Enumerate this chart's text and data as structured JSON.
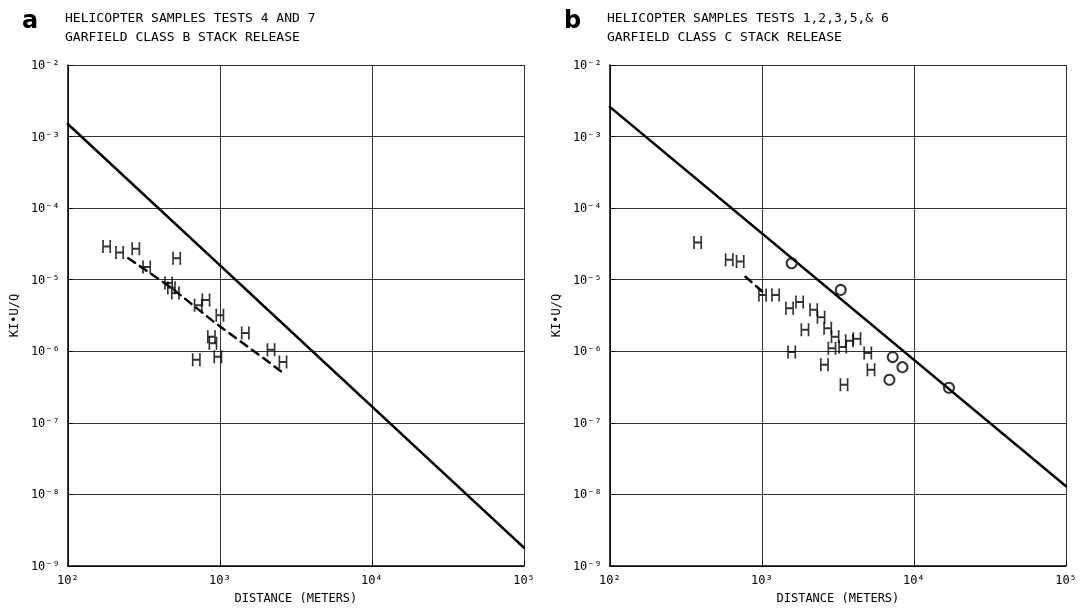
{
  "chart_data": [
    {
      "type": "scatter",
      "title": "HELICOPTER SAMPLES TESTS 4 AND 7",
      "subtitle": "GARFIELD CLASS B STACK RELEASE",
      "annotations": [
        "a"
      ],
      "xlabel": "DISTANCE (METERS)",
      "ylabel": "KI•U/Q",
      "log": "xy",
      "grid": true,
      "xlim": [
        100,
        100000
      ],
      "xticks": [
        {
          "value": 100,
          "label": "10²"
        },
        {
          "value": 1000,
          "label": "10³"
        },
        {
          "value": 10000,
          "label": "10⁴"
        },
        {
          "value": 100000,
          "label": "10⁵"
        }
      ],
      "ylim": [
        1e-09,
        0.01
      ],
      "yticks": [
        {
          "value": 1e-09,
          "label": "10⁻⁹"
        },
        {
          "value": 1e-08,
          "label": "10⁻⁸"
        },
        {
          "value": 1e-07,
          "label": "10⁻⁷"
        },
        {
          "value": 1e-06,
          "label": "10⁻⁶"
        },
        {
          "value": 1e-05,
          "label": "10⁻⁵"
        },
        {
          "value": 0.0001,
          "label": "10⁻⁴"
        },
        {
          "value": 0.001,
          "label": "10⁻³"
        },
        {
          "value": 0.01,
          "label": "10⁻²"
        }
      ],
      "series": [
        {
          "type": "line",
          "marker": "none",
          "line_style": "solid",
          "color": "#000000",
          "x": [
            100,
            100000
          ],
          "values": [
            0.0015,
            1.8e-09
          ]
        },
        {
          "type": "line",
          "marker": "none",
          "line_style": "dashed",
          "color": "#000000",
          "x": [
            250,
            480,
            930,
            2000,
            2600
          ],
          "values": [
            2e-05,
            7.7e-06,
            2.5e-06,
            7.6e-07,
            5e-07
          ]
        },
        {
          "marker": "cross",
          "color": "#000000",
          "x": [
            180,
            219,
            280,
            330,
            520,
            460,
            480,
            510,
            720,
            810,
            1000,
            880,
            900,
            700,
            970,
            1470,
            2170,
            2600
          ],
          "values": [
            2.9e-05,
            2.4e-05,
            2.7e-05,
            1.5e-05,
            2e-05,
            9e-06,
            7.7e-06,
            6.5e-06,
            4.4e-06,
            5.2e-06,
            3.2e-06,
            1.6e-06,
            1.3e-06,
            7.6e-07,
            8.4e-07,
            1.8e-06,
            1.05e-06,
            7.1e-07
          ]
        }
      ]
    },
    {
      "type": "scatter",
      "title": "HELICOPTER SAMPLES TESTS 1,2,3,5,& 6",
      "subtitle": "GARFIELD CLASS C STACK RELEASE",
      "annotations": [
        "b"
      ],
      "xlabel": "DISTANCE (METERS)",
      "ylabel": "KI•U/Q",
      "log": "xy",
      "grid": true,
      "xlim": [
        100,
        100000
      ],
      "xticks": [
        {
          "value": 100,
          "label": "10²"
        },
        {
          "value": 1000,
          "label": "10³"
        },
        {
          "value": 10000,
          "label": "10⁴"
        },
        {
          "value": 100000,
          "label": "10⁵"
        }
      ],
      "ylim": [
        1e-09,
        0.01
      ],
      "yticks": [
        {
          "value": 1e-09,
          "label": "10⁻⁹"
        },
        {
          "value": 1e-08,
          "label": "10⁻⁸"
        },
        {
          "value": 1e-07,
          "label": "10⁻⁷"
        },
        {
          "value": 1e-06,
          "label": "10⁻⁶"
        },
        {
          "value": 1e-05,
          "label": "10⁻⁵"
        },
        {
          "value": 0.0001,
          "label": "10⁻⁴"
        },
        {
          "value": 0.001,
          "label": "10⁻³"
        },
        {
          "value": 0.01,
          "label": "10⁻²"
        }
      ],
      "series": [
        {
          "type": "line",
          "marker": "none",
          "line_style": "solid",
          "color": "#000000",
          "x": [
            100,
            100000
          ],
          "values": [
            0.0026,
            1.3e-08
          ]
        },
        {
          "type": "line",
          "marker": "none",
          "line_style": "dashed",
          "color": "#000000",
          "x": [
            780,
            1010
          ],
          "values": [
            1.1e-05,
            6.8e-06
          ]
        },
        {
          "marker": "cross",
          "color": "#000000",
          "x": [
            378,
            610,
            720,
            1010,
            1230,
            1520,
            1770,
            2190,
            2450,
            1920,
            2710,
            3030,
            3760,
            4220,
            2890,
            3400,
            1570,
            2580,
            4970,
            5220,
            3470
          ],
          "values": [
            3.3e-05,
            1.9e-05,
            1.8e-05,
            6.1e-06,
            6.1e-06,
            4e-06,
            4.9e-06,
            3.8e-06,
            3e-06,
            2e-06,
            2.1e-06,
            1.6e-06,
            1.4e-06,
            1.5e-06,
            1.1e-06,
            1.15e-06,
            9.8e-07,
            6.5e-07,
            9.5e-07,
            5.5e-07,
            3.4e-07
          ]
        },
        {
          "marker": "circle",
          "color": "#000000",
          "x": [
            1570,
            3300,
            7250,
            8400,
            6900,
            17000
          ],
          "values": [
            1.7e-05,
            7.2e-06,
            8.3e-07,
            6e-07,
            4e-07,
            3.1e-07
          ]
        }
      ]
    }
  ]
}
